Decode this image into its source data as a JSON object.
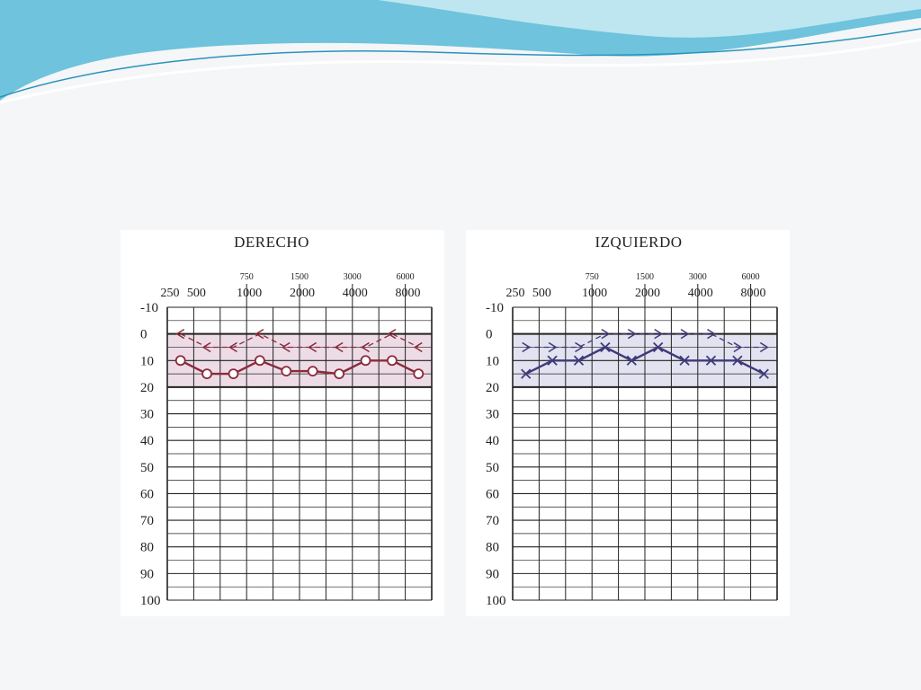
{
  "chart_data": [
    {
      "type": "line",
      "title": "DERECHO",
      "x_main": [
        250,
        500,
        1000,
        2000,
        4000,
        8000
      ],
      "x_half": [
        750,
        1500,
        3000,
        6000
      ],
      "x": [
        250,
        500,
        750,
        1000,
        1500,
        2000,
        3000,
        4000,
        6000,
        8000
      ],
      "y_ticks": [
        -10,
        0,
        10,
        20,
        30,
        40,
        50,
        60,
        70,
        80,
        90,
        100
      ],
      "ylim": [
        -10,
        100
      ],
      "y_inverted": true,
      "grid": true,
      "series": [
        {
          "marker": "o",
          "line": "solid",
          "values": [
            10,
            15,
            15,
            10,
            14,
            14,
            15,
            10,
            10,
            15
          ]
        },
        {
          "marker": "<",
          "line": "dashed",
          "values": [
            0,
            5,
            5,
            0,
            5,
            5,
            5,
            5,
            0,
            5
          ]
        }
      ]
    },
    {
      "type": "line",
      "title": "IZQUIERDO",
      "x_main": [
        250,
        500,
        1000,
        2000,
        4000,
        8000
      ],
      "x_half": [
        750,
        1500,
        3000,
        6000
      ],
      "x": [
        250,
        500,
        750,
        1000,
        1500,
        2000,
        3000,
        4000,
        6000,
        8000
      ],
      "y_ticks": [
        -10,
        0,
        10,
        20,
        30,
        40,
        50,
        60,
        70,
        80,
        90,
        100
      ],
      "ylim": [
        -10,
        100
      ],
      "y_inverted": true,
      "grid": true,
      "series": [
        {
          "marker": "x",
          "line": "solid",
          "values": [
            15,
            10,
            10,
            5,
            10,
            5,
            10,
            10,
            10,
            15
          ]
        },
        {
          "marker": ">",
          "line": "dashed",
          "values": [
            5,
            5,
            5,
            0,
            0,
            0,
            0,
            0,
            5,
            5
          ]
        }
      ]
    }
  ],
  "colors": {
    "right_ear": "#8b2a3c",
    "left_ear": "#3e3a7a",
    "grid": "#222222",
    "right_band": "#eddce6",
    "left_band": "#e2e2f0",
    "wave_primary": "#6fc3dc",
    "wave_secondary": "#a9dceb"
  }
}
